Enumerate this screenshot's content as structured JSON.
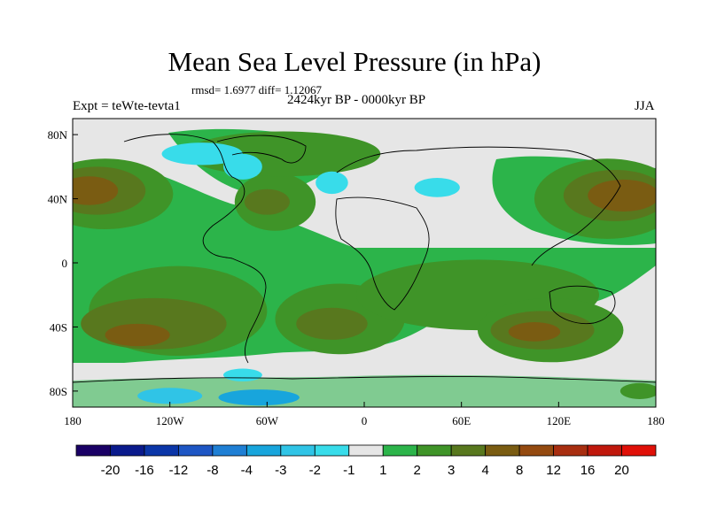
{
  "chart_data": {
    "type": "heatmap",
    "title": "Mean Sea Level Pressure (in hPa)",
    "stats_text": "rmsd= 1.6977 diff= 1.12067",
    "left_label": "Expt = teWte-tevta1",
    "center_label": "2424kyr BP - 0000kyr BP",
    "right_label": "JJA",
    "x_ticks": [
      "180",
      "120W",
      "60W",
      "0",
      "60E",
      "120E",
      "180"
    ],
    "x_tick_values": [
      -180,
      -120,
      -60,
      0,
      60,
      120,
      180
    ],
    "y_ticks": [
      "80N",
      "40N",
      "0",
      "40S",
      "80S"
    ],
    "y_tick_values": [
      80,
      40,
      0,
      -40,
      -80
    ],
    "xlim": [
      -180,
      180
    ],
    "ylim": [
      -90,
      90
    ],
    "colorbar_levels": [
      "-20",
      "-16",
      "-12",
      "-8",
      "-4",
      "-3",
      "-2",
      "-1",
      "1",
      "2",
      "3",
      "4",
      "8",
      "12",
      "16",
      "20"
    ],
    "colorbar_colors": [
      "#1a0066",
      "#0a1a8c",
      "#0b36a8",
      "#1e56c4",
      "#1f7fd4",
      "#18a5dc",
      "#30c4e6",
      "#38dcea",
      "#e6e6e6",
      "#2cb44a",
      "#3f9428",
      "#58781e",
      "#7a5c12",
      "#944a10",
      "#a82e10",
      "#c0180c",
      "#e01008"
    ],
    "anomaly_regions": [
      {
        "lon": -160,
        "lat": 43,
        "rx": 42,
        "ry": 22,
        "level": "2"
      },
      {
        "lon": -165,
        "lat": 45,
        "rx": 30,
        "ry": 15,
        "level": "3"
      },
      {
        "lon": -170,
        "lat": 45,
        "rx": 18,
        "ry": 9,
        "level": "4"
      },
      {
        "lon": 150,
        "lat": 40,
        "rx": 45,
        "ry": 25,
        "level": "2"
      },
      {
        "lon": 155,
        "lat": 42,
        "rx": 32,
        "ry": 16,
        "level": "3"
      },
      {
        "lon": 160,
        "lat": 42,
        "rx": 22,
        "ry": 10,
        "level": "4"
      },
      {
        "lon": -55,
        "lat": 38,
        "rx": 25,
        "ry": 18,
        "level": "2"
      },
      {
        "lon": -60,
        "lat": 38,
        "rx": 14,
        "ry": 8,
        "level": "3"
      },
      {
        "lon": -115,
        "lat": -30,
        "rx": 55,
        "ry": 28,
        "level": "2"
      },
      {
        "lon": -130,
        "lat": -38,
        "rx": 45,
        "ry": 16,
        "level": "3"
      },
      {
        "lon": -140,
        "lat": -45,
        "rx": 20,
        "ry": 7,
        "level": "4"
      },
      {
        "lon": -15,
        "lat": -35,
        "rx": 40,
        "ry": 22,
        "level": "2"
      },
      {
        "lon": -20,
        "lat": -38,
        "rx": 22,
        "ry": 10,
        "level": "3"
      },
      {
        "lon": 70,
        "lat": -20,
        "rx": 75,
        "ry": 22,
        "level": "2"
      },
      {
        "lon": 115,
        "lat": -42,
        "rx": 45,
        "ry": 20,
        "level": "2"
      },
      {
        "lon": 110,
        "lat": -42,
        "rx": 32,
        "ry": 12,
        "level": "3"
      },
      {
        "lon": 105,
        "lat": -43,
        "rx": 16,
        "ry": 6,
        "level": "4"
      },
      {
        "lon": -50,
        "lat": 68,
        "rx": 60,
        "ry": 14,
        "level": "2"
      },
      {
        "lon": -100,
        "lat": 68,
        "rx": 25,
        "ry": 7,
        "level": "-1"
      },
      {
        "lon": -75,
        "lat": 60,
        "rx": 12,
        "ry": 8,
        "level": "-1"
      },
      {
        "lon": 45,
        "lat": 47,
        "rx": 14,
        "ry": 6,
        "level": "-1"
      },
      {
        "lon": -20,
        "lat": 50,
        "rx": 10,
        "ry": 7,
        "level": "-1"
      },
      {
        "lon": -75,
        "lat": -70,
        "rx": 12,
        "ry": 4,
        "level": "-1"
      },
      {
        "lon": -120,
        "lat": -83,
        "rx": 20,
        "ry": 5,
        "level": "-2"
      },
      {
        "lon": -65,
        "lat": -84,
        "rx": 25,
        "ry": 5,
        "level": "-3"
      },
      {
        "lon": 170,
        "lat": -80,
        "rx": 12,
        "ry": 5,
        "level": "2"
      }
    ]
  }
}
